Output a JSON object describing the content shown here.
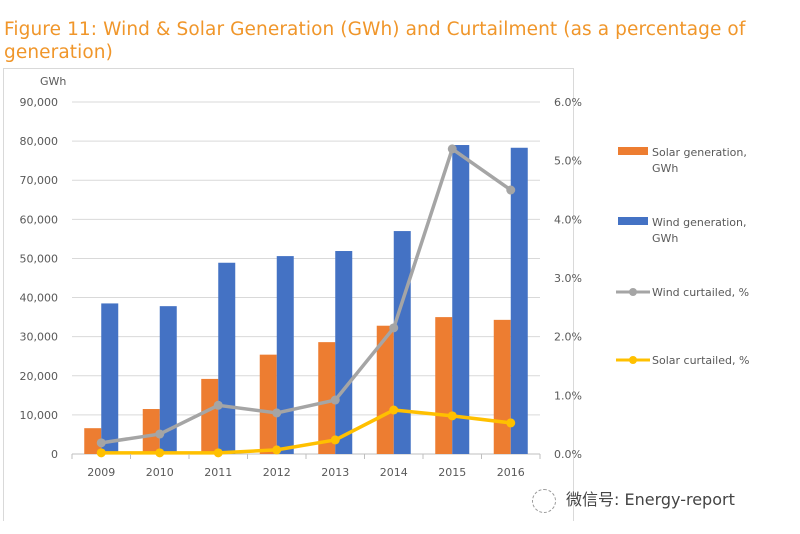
{
  "title_line1": "Figure 11: Wind & Solar Generation (GWh) and Curtailment (as a percentage of",
  "title_line2": "generation)",
  "watermark": {
    "icon": "wechat-icon",
    "text": "微信号: Energy-report"
  },
  "colors": {
    "solar_bar": "#ed7d31",
    "wind_bar": "#4472c4",
    "wind_line": "#a5a5a5",
    "solar_line": "#ffc000",
    "title": "#f0962a"
  },
  "chart_data": {
    "type": "bar",
    "title": "Figure 11: Wind & Solar Generation (GWh) and Curtailment (as a percentage of generation)",
    "categories": [
      "2009",
      "2010",
      "2011",
      "2012",
      "2013",
      "2014",
      "2015",
      "2016"
    ],
    "ylabel": "GWh",
    "ylim": [
      0,
      90000
    ],
    "yticks": [
      "0",
      "10,000",
      "20,000",
      "30,000",
      "40,000",
      "50,000",
      "60,000",
      "70,000",
      "80,000",
      "90,000"
    ],
    "y2lim": [
      0,
      6.0
    ],
    "y2ticks": [
      "0.0%",
      "1.0%",
      "2.0%",
      "3.0%",
      "4.0%",
      "5.0%",
      "6.0%"
    ],
    "grid": true,
    "legend_position": "right",
    "series": [
      {
        "name": "Solar generation, GWh",
        "type": "bar",
        "axis": "left",
        "values": [
          6600,
          11500,
          19200,
          25400,
          28600,
          32800,
          35000,
          34300
        ]
      },
      {
        "name": "Wind generation, GWh",
        "type": "bar",
        "axis": "left",
        "values": [
          38500,
          37800,
          48900,
          50600,
          51900,
          57000,
          79000,
          78300
        ]
      },
      {
        "name": "Wind curtailed, %",
        "type": "line",
        "axis": "right",
        "values": [
          0.19,
          0.34,
          0.83,
          0.7,
          0.92,
          2.15,
          5.2,
          4.5
        ]
      },
      {
        "name": "Solar curtailed, %",
        "type": "line",
        "axis": "right",
        "values": [
          0.02,
          0.02,
          0.02,
          0.07,
          0.24,
          0.75,
          0.65,
          0.53
        ]
      }
    ]
  }
}
